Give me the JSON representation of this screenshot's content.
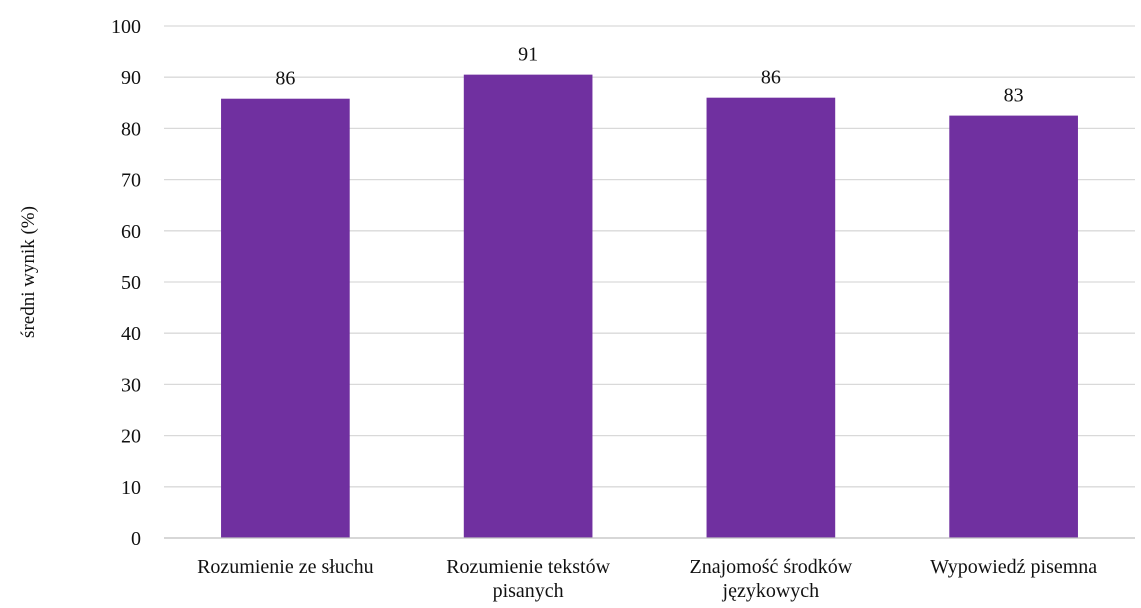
{
  "chart_data": {
    "type": "bar",
    "title": "",
    "xlabel": "",
    "ylabel": "średni wynik (%)",
    "categories": [
      [
        "Rozumienie ze słuchu"
      ],
      [
        "Rozumienie tekstów",
        "pisanych"
      ],
      [
        "Znajomość środków",
        "językowych"
      ],
      [
        "Wypowiedź pisemna"
      ]
    ],
    "values": [
      85.8,
      90.5,
      86.0,
      82.5
    ],
    "data_labels": [
      "86",
      "91",
      "86",
      "83"
    ],
    "yticks": [
      0,
      10,
      20,
      30,
      40,
      50,
      60,
      70,
      80,
      90,
      100
    ],
    "ylim": [
      0,
      100
    ],
    "grid": true,
    "legend": "none",
    "colors": {
      "bar": "#7030a0",
      "grid": "#d9d9d9",
      "axis": "#bfbfbf"
    }
  }
}
